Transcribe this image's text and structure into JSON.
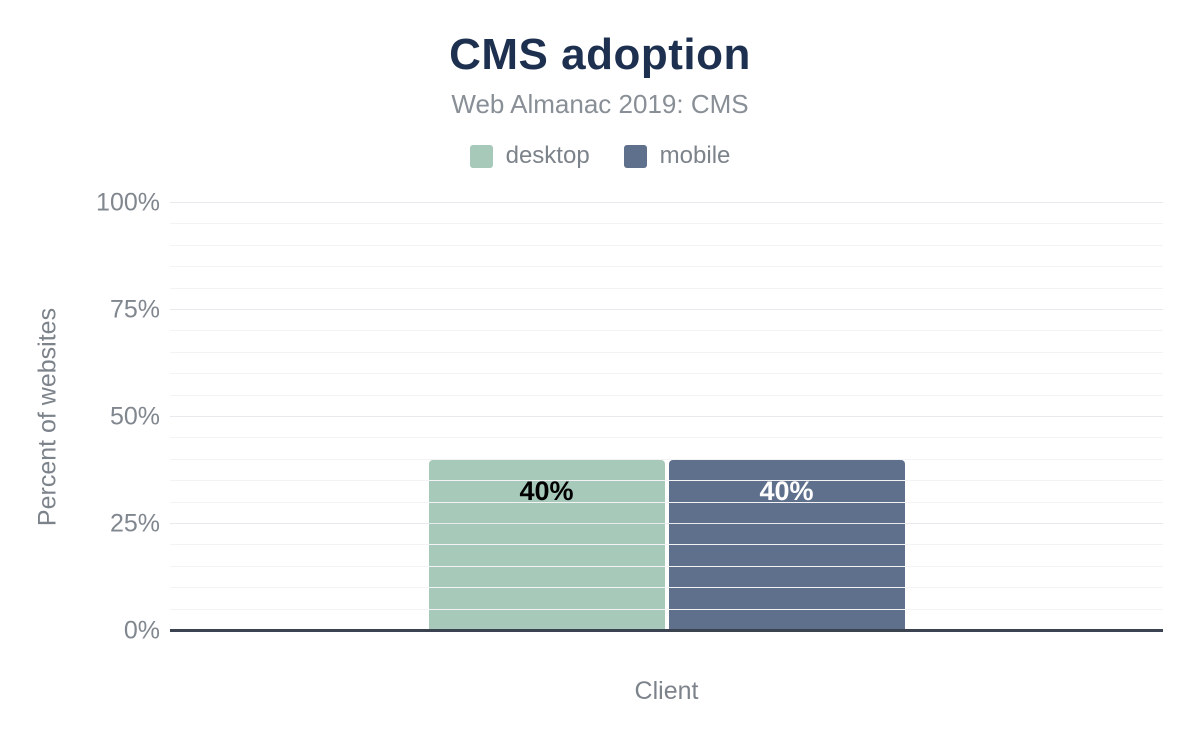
{
  "chart_data": {
    "type": "bar",
    "title": "CMS adoption",
    "subtitle": "Web Almanac 2019: CMS",
    "xlabel": "Client",
    "ylabel": "Percent of websites",
    "categories": [
      "Client"
    ],
    "series": [
      {
        "name": "desktop",
        "values": [
          40
        ],
        "color": "#a6c9ba",
        "data_label": "40%",
        "data_label_color": "#000000"
      },
      {
        "name": "mobile",
        "values": [
          40
        ],
        "color": "#5f708c",
        "data_label": "40%",
        "data_label_color": "#ffffff"
      }
    ],
    "ylim": [
      0,
      100
    ],
    "yticks": [
      {
        "value": 0,
        "label": "0%"
      },
      {
        "value": 25,
        "label": "25%"
      },
      {
        "value": 50,
        "label": "50%"
      },
      {
        "value": 75,
        "label": "75%"
      },
      {
        "value": 100,
        "label": "100%"
      }
    ],
    "minor_grid_step": 5,
    "major_grid_step": 25,
    "grid": true,
    "legend_position": "top"
  },
  "colors": {
    "title_text": "#1d304f",
    "muted_text": "#7d838b",
    "tick_text": "#81878f",
    "axis_line": "#3b4350",
    "gridline_minor": "#f3f3f5",
    "gridline_major": "#e9e9ed",
    "background": "#ffffff"
  }
}
